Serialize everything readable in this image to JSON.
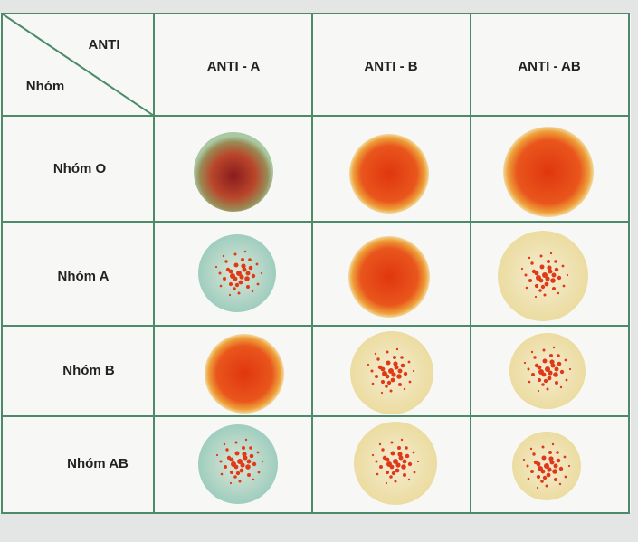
{
  "table": {
    "corner": {
      "top": "ANTI",
      "bottom": "Nhóm"
    },
    "columns": [
      "ANTI - A",
      "ANTI - B",
      "ANTI - AB"
    ],
    "rows": [
      "Nhóm O",
      "Nhóm A",
      "Nhóm B",
      "Nhóm AB"
    ]
  }
}
